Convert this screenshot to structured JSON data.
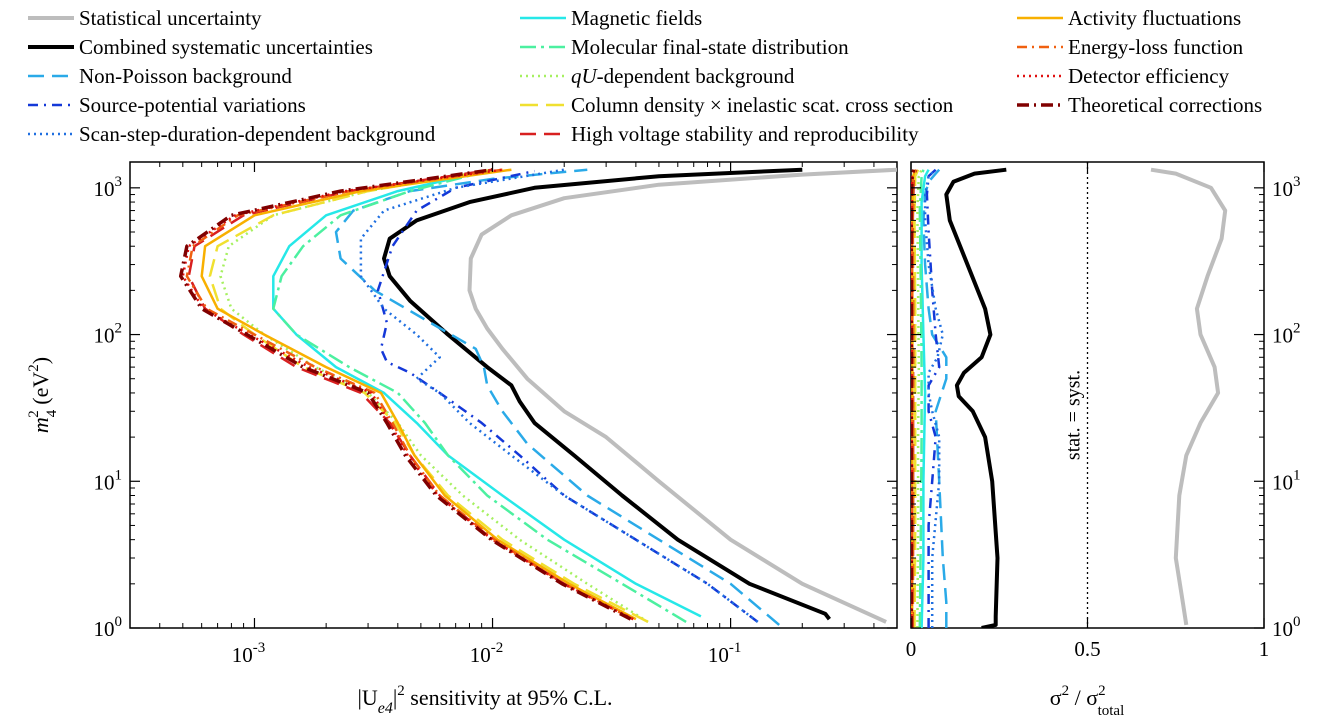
{
  "chart_data": {
    "type": "line",
    "legend_placement": "top",
    "colors": {
      "stat": "#bdbdbd",
      "combined": "#000000",
      "nonpoisson": "#2aaae8",
      "sourcepot": "#1438d8",
      "scanstep": "#1f6fe0",
      "magnetic": "#26e8e8",
      "fsd": "#4cf0a0",
      "qu": "#a6f060",
      "coldens": "#f0e030",
      "hv": "#d82020",
      "activity": "#f8b000",
      "eloss": "#f06010",
      "deteff": "#e01010",
      "theory": "#800000"
    },
    "series": [
      {
        "key": "stat",
        "name": "Statistical uncertainty",
        "color": "#bdbdbd",
        "dash": "",
        "width": 4,
        "x": [
          0.45,
          0.2,
          0.1,
          0.05,
          0.03,
          0.02,
          0.014,
          0.011,
          0.0095,
          0.0085,
          0.008,
          0.0081,
          0.009,
          0.012,
          0.02,
          0.05,
          0.2,
          0.5
        ],
        "y": [
          1.1,
          2,
          4,
          10,
          20,
          30,
          50,
          80,
          110,
          150,
          200,
          330,
          480,
          650,
          850,
          1050,
          1230,
          1330
        ],
        "ratio_x": [
          0.78,
          0.77,
          0.75,
          0.76,
          0.78,
          0.82,
          0.87,
          0.86,
          0.82,
          0.81,
          0.84,
          0.88,
          0.89,
          0.85,
          0.75,
          0.68
        ],
        "ratio_y": [
          1.05,
          1.5,
          3,
          8,
          15,
          25,
          40,
          60,
          100,
          150,
          250,
          450,
          700,
          1000,
          1250,
          1330
        ]
      },
      {
        "key": "combined",
        "name": "Combined systematic uncertainties",
        "color": "#000000",
        "dash": "",
        "width": 4,
        "x": [
          0.26,
          0.25,
          0.12,
          0.06,
          0.035,
          0.022,
          0.015,
          0.013,
          0.012,
          0.0095,
          0.0065,
          0.0045,
          0.0037,
          0.0035,
          0.0037,
          0.0048,
          0.008,
          0.015,
          0.05,
          0.2
        ],
        "y": [
          1.15,
          1.25,
          2,
          4,
          8,
          15,
          25,
          35,
          45,
          60,
          100,
          170,
          250,
          330,
          450,
          600,
          800,
          1000,
          1200,
          1330
        ],
        "ratio_x": [
          0.2,
          0.24,
          0.24,
          0.245,
          0.23,
          0.21,
          0.175,
          0.135,
          0.13,
          0.15,
          0.2,
          0.225,
          0.21,
          0.16,
          0.11,
          0.1,
          0.12,
          0.18,
          0.27
        ],
        "ratio_y": [
          1.0,
          1.05,
          1.2,
          3,
          10,
          20,
          30,
          38,
          45,
          55,
          70,
          100,
          150,
          300,
          600,
          900,
          1100,
          1250,
          1330
        ]
      },
      {
        "key": "nonpoisson",
        "name": "Non-Poisson background",
        "color": "#2aaae8",
        "dash": "16,8",
        "width": 2.5,
        "x": [
          0.16,
          0.1,
          0.05,
          0.025,
          0.014,
          0.011,
          0.0095,
          0.0092,
          0.0085,
          0.0055,
          0.0032,
          0.0023,
          0.0022,
          0.0026,
          0.0045,
          0.01,
          0.025
        ],
        "y": [
          1.05,
          2,
          4,
          8,
          18,
          30,
          45,
          60,
          80,
          120,
          200,
          330,
          500,
          700,
          950,
          1150,
          1330
        ],
        "ratio_x": [
          0.1,
          0.1,
          0.09,
          0.08,
          0.07,
          0.1,
          0.1,
          0.06,
          0.05,
          0.04,
          0.035,
          0.04,
          0.05,
          0.07,
          0.08
        ],
        "ratio_y": [
          1.0,
          1.5,
          3,
          10,
          30,
          50,
          70,
          100,
          150,
          300,
          600,
          900,
          1100,
          1250,
          1330
        ]
      },
      {
        "key": "sourcepot",
        "name": "Source-potential variations",
        "color": "#1438d8",
        "dash": "10,6,2,6",
        "width": 2.5,
        "x": [
          0.13,
          0.08,
          0.04,
          0.02,
          0.013,
          0.009,
          0.006,
          0.0045,
          0.0036,
          0.0034,
          0.0036,
          0.0033,
          0.0038,
          0.0048,
          0.007,
          0.015
        ],
        "y": [
          1.1,
          2,
          4,
          8,
          15,
          25,
          40,
          55,
          65,
          80,
          120,
          200,
          400,
          700,
          1000,
          1300
        ],
        "ratio_x": [
          0.05,
          0.05,
          0.05,
          0.06,
          0.07,
          0.05,
          0.05,
          0.08,
          0.07,
          0.06,
          0.05,
          0.045,
          0.05,
          0.07
        ],
        "ratio_y": [
          1.0,
          2,
          5,
          10,
          20,
          30,
          45,
          60,
          100,
          200,
          500,
          900,
          1200,
          1330
        ]
      },
      {
        "key": "scanstep",
        "name": "Scan-step-duration-dependent background",
        "color": "#1f6fe0",
        "dash": "2,4",
        "width": 2.5,
        "x": [
          0.13,
          0.08,
          0.04,
          0.02,
          0.012,
          0.008,
          0.006,
          0.0048,
          0.006,
          0.0048,
          0.0035,
          0.0028,
          0.0028,
          0.0035,
          0.007,
          0.02
        ],
        "y": [
          1.1,
          2,
          4,
          8,
          15,
          25,
          40,
          50,
          70,
          100,
          150,
          250,
          450,
          700,
          1000,
          1330
        ],
        "ratio_x": [
          0.06,
          0.06,
          0.08,
          0.08,
          0.06,
          0.05,
          0.05,
          0.075,
          0.09,
          0.07,
          0.05,
          0.04,
          0.04,
          0.05,
          0.07
        ],
        "ratio_y": [
          1.0,
          3,
          10,
          20,
          30,
          40,
          55,
          70,
          100,
          150,
          300,
          600,
          900,
          1200,
          1330
        ]
      },
      {
        "key": "magnetic",
        "name": "Magnetic fields",
        "color": "#26e8e8",
        "dash": "",
        "width": 2.5,
        "x": [
          0.075,
          0.04,
          0.02,
          0.011,
          0.0065,
          0.0048,
          0.0035,
          0.0022,
          0.0015,
          0.0012,
          0.0012,
          0.0014,
          0.002,
          0.004,
          0.01
        ],
        "y": [
          1.2,
          2,
          4,
          8,
          15,
          25,
          40,
          60,
          100,
          150,
          250,
          400,
          650,
          950,
          1330
        ],
        "ratio_x": [
          0.03,
          0.035,
          0.035,
          0.04,
          0.035,
          0.03,
          0.03,
          0.04,
          0.05
        ],
        "ratio_y": [
          1.0,
          3,
          10,
          40,
          100,
          300,
          800,
          1200,
          1330
        ]
      },
      {
        "key": "fsd",
        "name": "Molecular final-state distribution",
        "color": "#4cf0a0",
        "dash": "16,5,3,5",
        "width": 2.5,
        "x": [
          0.065,
          0.035,
          0.017,
          0.0095,
          0.0065,
          0.0052,
          0.004,
          0.0025,
          0.0015,
          0.0012,
          0.0013,
          0.0016,
          0.0023,
          0.0045,
          0.01
        ],
        "y": [
          1.1,
          2,
          4,
          8,
          15,
          25,
          40,
          60,
          100,
          150,
          250,
          400,
          650,
          950,
          1330
        ],
        "ratio_x": [
          0.025,
          0.028,
          0.03,
          0.03,
          0.028,
          0.025,
          0.03,
          0.035
        ],
        "ratio_y": [
          1.0,
          5,
          20,
          60,
          200,
          700,
          1200,
          1330
        ]
      },
      {
        "key": "qu",
        "name": "qU-dependent background",
        "color": "#a6f060",
        "dash": "2,4",
        "width": 2.5,
        "x": [
          0.045,
          0.025,
          0.013,
          0.0075,
          0.005,
          0.004,
          0.003,
          0.0018,
          0.0011,
          0.0008,
          0.00072,
          0.00078,
          0.0012,
          0.003,
          0.01
        ],
        "y": [
          1.1,
          2,
          4,
          8,
          15,
          25,
          40,
          60,
          100,
          150,
          250,
          400,
          650,
          950,
          1330
        ],
        "ratio_x": [
          0.018,
          0.02,
          0.02,
          0.022,
          0.02,
          0.018,
          0.022,
          0.03
        ],
        "ratio_y": [
          1.0,
          5,
          20,
          60,
          200,
          700,
          1200,
          1330
        ]
      },
      {
        "key": "coldens",
        "name": "Column density × inelastic scat. cross section",
        "color": "#f0e030",
        "dash": "18,8",
        "width": 2.5,
        "x": [
          0.045,
          0.022,
          0.011,
          0.0065,
          0.0047,
          0.0039,
          0.0029,
          0.0016,
          0.001,
          0.00072,
          0.00065,
          0.0007,
          0.0012,
          0.003,
          0.01
        ],
        "y": [
          1.1,
          2,
          4,
          8,
          15,
          25,
          40,
          60,
          100,
          150,
          250,
          400,
          650,
          950,
          1330
        ],
        "ratio_x": [
          0.01,
          0.012,
          0.012,
          0.012,
          0.01,
          0.012,
          0.02
        ],
        "ratio_y": [
          1.0,
          5,
          30,
          150,
          600,
          1200,
          1330
        ]
      },
      {
        "key": "hv",
        "name": "High voltage stability and reproducibility",
        "color": "#d82020",
        "dash": "16,8",
        "width": 2.5,
        "x": [
          0.039,
          0.02,
          0.01,
          0.006,
          0.0045,
          0.0037,
          0.0028,
          0.0015,
          0.0009,
          0.00062,
          0.00053,
          0.00056,
          0.0009,
          0.0025,
          0.01
        ],
        "y": [
          1.15,
          2,
          4,
          8,
          15,
          25,
          40,
          60,
          100,
          150,
          250,
          400,
          650,
          950,
          1330
        ],
        "ratio_x": [
          0.005,
          0.006,
          0.006,
          0.006,
          0.005,
          0.008,
          0.015
        ],
        "ratio_y": [
          1.0,
          5,
          30,
          150,
          600,
          1200,
          1330
        ]
      },
      {
        "key": "activity",
        "name": "Activity fluctuations",
        "color": "#f8b000",
        "dash": "",
        "width": 2.5,
        "x": [
          0.04,
          0.021,
          0.0105,
          0.0063,
          0.0047,
          0.004,
          0.0034,
          0.002,
          0.0011,
          0.0007,
          0.0006,
          0.00062,
          0.001,
          0.0028,
          0.012
        ],
        "y": [
          1.15,
          2,
          4,
          8,
          15,
          25,
          40,
          60,
          100,
          150,
          250,
          400,
          650,
          950,
          1330
        ],
        "ratio_x": [
          0.003,
          0.004,
          0.004,
          0.004,
          0.003,
          0.006,
          0.012
        ],
        "ratio_y": [
          1.0,
          5,
          30,
          150,
          600,
          1200,
          1330
        ]
      },
      {
        "key": "eloss",
        "name": "Energy-loss function",
        "color": "#f06010",
        "dash": "10,5,2,5",
        "width": 2.5,
        "x": [
          0.039,
          0.02,
          0.0102,
          0.006,
          0.0045,
          0.0038,
          0.0032,
          0.0018,
          0.001,
          0.00063,
          0.00052,
          0.00055,
          0.00085,
          0.0025,
          0.011
        ],
        "y": [
          1.15,
          2,
          4,
          8,
          15,
          25,
          40,
          60,
          100,
          150,
          250,
          400,
          650,
          950,
          1330
        ],
        "ratio_x": [
          0.002,
          0.003,
          0.003,
          0.003,
          0.002,
          0.005,
          0.01
        ],
        "ratio_y": [
          1.0,
          5,
          30,
          150,
          600,
          1200,
          1330
        ]
      },
      {
        "key": "deteff",
        "name": "Detector efficiency",
        "color": "#e01010",
        "dash": "2,4",
        "width": 2.5,
        "x": [
          0.039,
          0.0198,
          0.01,
          0.0059,
          0.0044,
          0.0037,
          0.0031,
          0.0017,
          0.00095,
          0.00061,
          0.0005,
          0.00053,
          0.00083,
          0.0024,
          0.011
        ],
        "y": [
          1.15,
          2,
          4,
          8,
          15,
          25,
          40,
          60,
          100,
          150,
          250,
          400,
          650,
          950,
          1330
        ],
        "ratio_x": [
          0.001,
          0.002,
          0.002,
          0.002,
          0.001,
          0.004,
          0.009
        ],
        "ratio_y": [
          1.0,
          5,
          30,
          150,
          600,
          1200,
          1330
        ]
      },
      {
        "key": "theory",
        "name": "Theoretical corrections",
        "color": "#800000",
        "dash": "12,5,2,5",
        "width": 3.5,
        "x": [
          0.038,
          0.0196,
          0.0099,
          0.0058,
          0.0043,
          0.0036,
          0.003,
          0.0016,
          0.00093,
          0.0006,
          0.00049,
          0.00052,
          0.0008,
          0.0023,
          0.01
        ],
        "y": [
          1.15,
          2,
          4,
          8,
          15,
          25,
          40,
          60,
          100,
          150,
          250,
          400,
          650,
          950,
          1330
        ],
        "ratio_x": [
          0.0005,
          0.001,
          0.001,
          0.001,
          0.0005,
          0.003,
          0.008
        ],
        "ratio_y": [
          1.0,
          5,
          30,
          150,
          600,
          1200,
          1330
        ]
      }
    ],
    "left_panel": {
      "x_scale": "log",
      "y_scale": "log",
      "xlim": [
        0.0003,
        0.5
      ],
      "ylim": [
        1,
        1500
      ],
      "x_ticks": [
        0.001,
        0.01,
        0.1
      ],
      "x_tick_labels": [
        {
          "b": "10",
          "e": "-3"
        },
        {
          "b": "10",
          "e": "-2"
        },
        {
          "b": "10",
          "e": "-1"
        }
      ],
      "y_ticks": [
        1,
        10,
        100,
        1000
      ],
      "y_tick_labels": [
        {
          "b": "10",
          "e": "0"
        },
        {
          "b": "10",
          "e": "1"
        },
        {
          "b": "10",
          "e": "2"
        },
        {
          "b": "10",
          "e": "3"
        }
      ],
      "xlabel": {
        "pre": "|U",
        "sub": "e4",
        "post": "|",
        "sup": "2",
        "rest": " sensitivity at 95% C.L."
      },
      "ylabel": {
        "var": "m",
        "sub": "4",
        "sup": "2",
        "rest": " (eV",
        "unit_sup": "2",
        "close": ")"
      }
    },
    "right_panel": {
      "x_scale": "linear",
      "y_scale": "log",
      "xlim": [
        0,
        1
      ],
      "ylim": [
        1,
        1500
      ],
      "x_ticks": [
        0,
        0.5,
        1
      ],
      "x_tick_labels": [
        "0",
        "0.5",
        "1"
      ],
      "y_ticks": [
        1,
        10,
        100,
        1000
      ],
      "y_tick_labels": [
        {
          "b": "10",
          "e": "0"
        },
        {
          "b": "10",
          "e": "1"
        },
        {
          "b": "10",
          "e": "2"
        },
        {
          "b": "10",
          "e": "3"
        }
      ],
      "xlabel": {
        "num": "σ",
        "num_sup": "2",
        "slash": " / ",
        "den": "σ",
        "den_sup": "2",
        "den_sub": "total"
      },
      "reference_line": {
        "x": 0.5,
        "label": "stat. = syst."
      }
    }
  }
}
